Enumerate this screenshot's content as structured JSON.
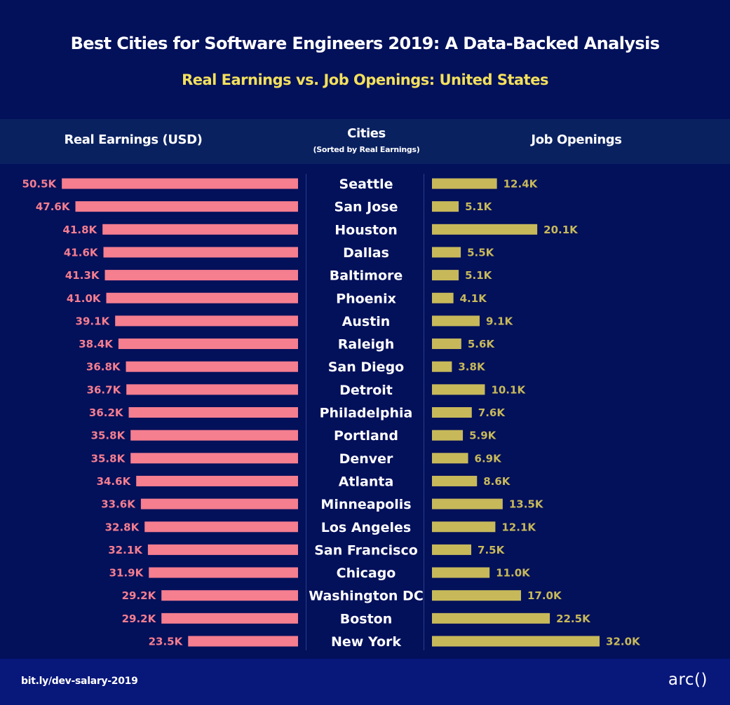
{
  "header": {
    "title": "Best Cities for Software Engineers 2019: A Data-Backed Analysis",
    "subtitle": "Real Earnings vs. Job Openings: United States",
    "col_earnings": "Real Earnings (USD)",
    "col_cities": "Cities",
    "col_cities_sub": "(Sorted by Real Earnings)",
    "col_jobs": "Job Openings"
  },
  "colors": {
    "background": "#03105a",
    "earnings_bar": "#f57e8f",
    "jobs_bar": "#c7b95a",
    "subtitle": "#f3e05c"
  },
  "chart_data": {
    "type": "bar",
    "title": "Best Cities for Software Engineers 2019: A Data-Backed Analysis",
    "subtitle": "Real Earnings vs. Job Openings: United States",
    "categories": [
      "Seattle",
      "San Jose",
      "Houston",
      "Dallas",
      "Baltimore",
      "Phoenix",
      "Austin",
      "Raleigh",
      "San Diego",
      "Detroit",
      "Philadelphia",
      "Portland",
      "Denver",
      "Atlanta",
      "Minneapolis",
      "Los Angeles",
      "San Francisco",
      "Chicago",
      "Washington DC",
      "Boston",
      "New York"
    ],
    "series": [
      {
        "name": "Real Earnings (USD)",
        "unit": "K",
        "direction": "left",
        "values": [
          50.5,
          47.6,
          41.8,
          41.6,
          41.3,
          41.0,
          39.1,
          38.4,
          36.8,
          36.7,
          36.2,
          35.8,
          35.8,
          34.6,
          33.6,
          32.8,
          32.1,
          31.9,
          29.2,
          29.2,
          23.5
        ],
        "labels": [
          "50.5K",
          "47.6K",
          "41.8K",
          "41.6K",
          "41.3K",
          "41.0K",
          "39.1K",
          "38.4K",
          "36.8K",
          "36.7K",
          "36.2K",
          "35.8K",
          "35.8K",
          "34.6K",
          "33.6K",
          "32.8K",
          "32.1K",
          "31.9K",
          "29.2K",
          "29.2K",
          "23.5K"
        ]
      },
      {
        "name": "Job Openings",
        "unit": "K",
        "direction": "right",
        "values": [
          12.4,
          5.1,
          20.1,
          5.5,
          5.1,
          4.1,
          9.1,
          5.6,
          3.8,
          10.1,
          7.6,
          5.9,
          6.9,
          8.6,
          13.5,
          12.1,
          7.5,
          11.0,
          17.0,
          22.5,
          32.0
        ],
        "labels": [
          "12.4K",
          "5.1K",
          "20.1K",
          "5.5K",
          "5.1K",
          "4.1K",
          "9.1K",
          "5.6K",
          "3.8K",
          "10.1K",
          "7.6K",
          "5.9K",
          "6.9K",
          "8.6K",
          "13.5K",
          "12.1K",
          "7.5K",
          "11.0K",
          "17.0K",
          "22.5K",
          "32.0K"
        ]
      }
    ],
    "xlabel": "",
    "ylabel": "Cities (Sorted by Real Earnings)",
    "grid": false,
    "legend": "none"
  },
  "footer": {
    "link": "bit.ly/dev-salary-2019",
    "logo": "arc()"
  }
}
